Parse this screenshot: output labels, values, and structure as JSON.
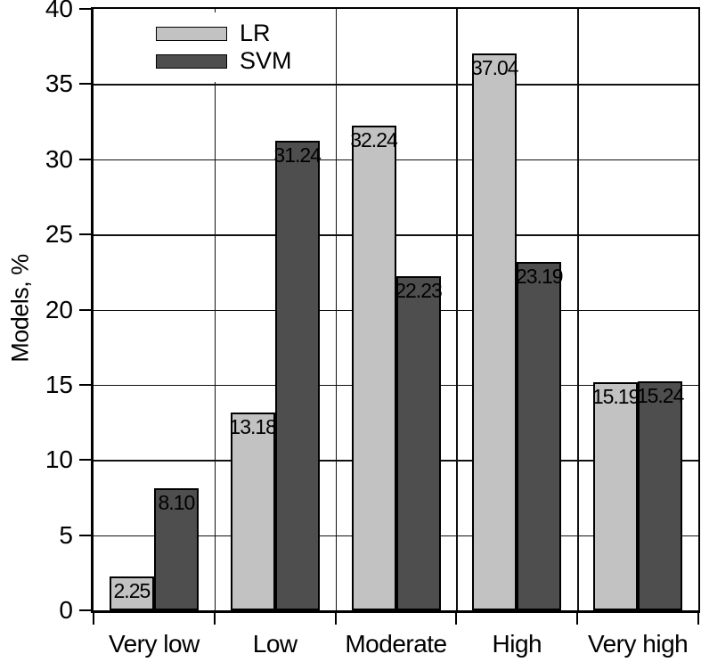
{
  "chart_data": {
    "type": "bar",
    "title": "",
    "ylabel": "Models, %",
    "xlabel": "",
    "ylim": [
      0,
      40
    ],
    "ytick_step": 5,
    "yticks": [
      0,
      5,
      10,
      15,
      20,
      25,
      30,
      35,
      40
    ],
    "categories": [
      "Very low",
      "Low",
      "Moderate",
      "High",
      "Very high"
    ],
    "series": [
      {
        "name": "LR",
        "color": "#c2c2c2",
        "values": [
          2.25,
          13.18,
          32.24,
          37.04,
          15.19
        ],
        "labels": [
          "2.25",
          "13.18",
          "32.24",
          "37.04",
          "15.19"
        ]
      },
      {
        "name": "SVM",
        "color": "#4e4e4e",
        "values": [
          8.1,
          31.24,
          22.23,
          23.19,
          15.24
        ],
        "labels": [
          "8.10",
          "31.24",
          "22.23",
          "23.19",
          "15.24"
        ]
      }
    ],
    "grid": true,
    "legend_position": "top-left-inside",
    "bar_outline_color": "#000000",
    "value_label_color": "#000000",
    "value_labels_shown": true
  }
}
